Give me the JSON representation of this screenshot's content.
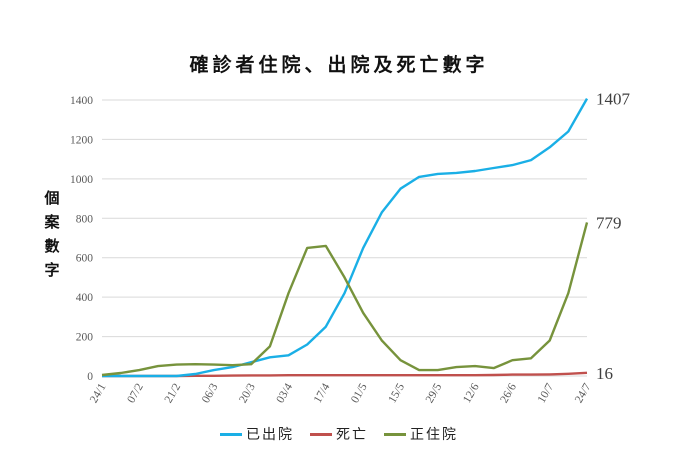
{
  "chart_data": {
    "type": "line",
    "title": "確診者住院、出院及死亡數字",
    "xlabel": "",
    "ylabel": "個案數字",
    "ylabel_chars": [
      "個",
      "案",
      "數",
      "字"
    ],
    "ylim": [
      0,
      1400
    ],
    "yticks": [
      "0",
      "200",
      "400",
      "600",
      "800",
      "1000",
      "1200",
      "1400"
    ],
    "grid": true,
    "legend_position": "bottom",
    "x_tick_labels": [
      "24/1",
      "07/2",
      "21/2",
      "06/3",
      "20/3",
      "03/4",
      "17/4",
      "01/5",
      "15/5",
      "29/5",
      "12/6",
      "26/6",
      "10/7",
      "24/7"
    ],
    "x_step_days": 7,
    "x": [
      "24/1",
      "31/1",
      "07/2",
      "14/2",
      "21/2",
      "28/2",
      "06/3",
      "13/3",
      "20/3",
      "27/3",
      "03/4",
      "10/4",
      "17/4",
      "24/4",
      "01/5",
      "08/5",
      "15/5",
      "22/5",
      "29/5",
      "05/6",
      "12/6",
      "19/6",
      "26/6",
      "03/7",
      "10/7",
      "17/7",
      "24/7"
    ],
    "series": [
      {
        "name": "已出院",
        "color": "#1AAFE6",
        "end_label": "1407",
        "values": [
          0,
          0,
          0,
          0,
          0,
          10,
          30,
          45,
          70,
          95,
          105,
          160,
          250,
          420,
          650,
          830,
          950,
          1010,
          1025,
          1030,
          1040,
          1055,
          1070,
          1095,
          1160,
          1240,
          1407
        ]
      },
      {
        "name": "死亡",
        "color": "#C0504D",
        "end_label": "16",
        "values": [
          0,
          0,
          0,
          0,
          0,
          1,
          1,
          2,
          3,
          3,
          4,
          4,
          4,
          4,
          4,
          4,
          4,
          4,
          4,
          4,
          4,
          5,
          7,
          7,
          8,
          11,
          16
        ]
      },
      {
        "name": "正住院",
        "color": "#77933C",
        "end_label": "779",
        "values": [
          5,
          15,
          30,
          50,
          58,
          60,
          58,
          55,
          60,
          150,
          420,
          650,
          660,
          500,
          320,
          180,
          80,
          30,
          30,
          45,
          50,
          40,
          80,
          90,
          180,
          420,
          779
        ]
      }
    ]
  },
  "legend": {
    "items": [
      {
        "label": "已出院",
        "color": "#1AAFE6"
      },
      {
        "label": "死亡",
        "color": "#C0504D"
      },
      {
        "label": "正住院",
        "color": "#77933C"
      }
    ]
  }
}
